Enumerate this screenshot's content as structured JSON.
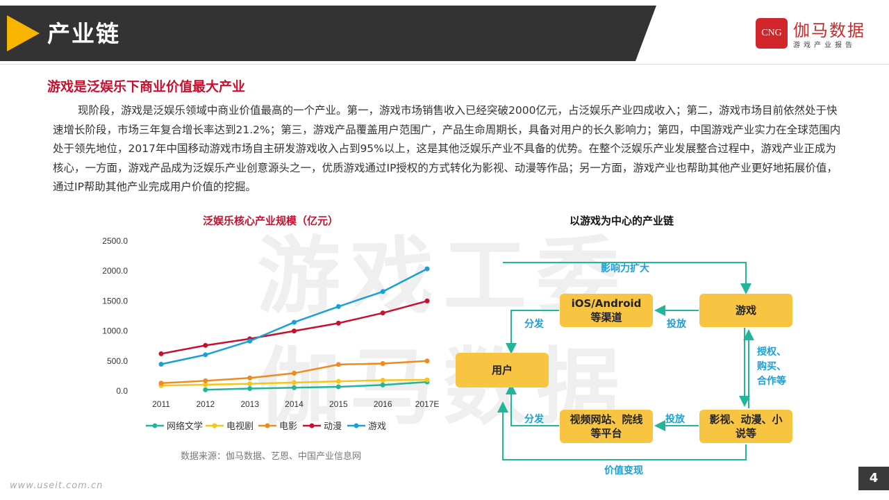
{
  "header": {
    "title": "产业链"
  },
  "logo": {
    "box_text": "CNG",
    "name": "伽马数据",
    "sub": "游戏产业报告"
  },
  "section": {
    "heading": "游戏是泛娱乐下商业价值最大产业"
  },
  "body": {
    "paragraph": "现阶段，游戏是泛娱乐领域中商业价值最高的一个产业。第一，游戏市场销售收入已经突破2000亿元，占泛娱乐产业四成收入；第二，游戏市场目前依然处于快速增长阶段，市场三年复合增长率达到21.2%；第三，游戏产品覆盖用户范围广，产品生命周期长，具备对用户的长久影响力；第四，中国游戏产业实力在全球范围内处于领先地位，2017年中国移动游戏市场自主研发游戏收入占到95%以上，这是其他泛娱乐产业不具备的优势。在整个泛娱乐产业发展整合过程中，游戏产业正成为核心，一方面，游戏产品成为泛娱乐产业创意源头之一，优质游戏通过IP授权的方式转化为影视、动漫等作品；另一方面，游戏产业也帮助其他产业更好地拓展价值，通过IP帮助其他产业完成用户价值的挖掘。"
  },
  "watermark": {
    "line1": "游戏工委",
    "line2": "伽马数据"
  },
  "chart_data": {
    "type": "line",
    "title": "泛娱乐核心产业规模（亿元）",
    "categories": [
      "2011",
      "2012",
      "2013",
      "2014",
      "2015",
      "2016",
      "2017E"
    ],
    "y_ticks": [
      "0.0",
      "500.0",
      "1000.0",
      "1500.0",
      "2000.0",
      "2500.0"
    ],
    "ylim": [
      0,
      2500
    ],
    "series": [
      {
        "name": "网络文学",
        "color": "#21b59a",
        "values": [
          null,
          20,
          40,
          55,
          70,
          100,
          150
        ]
      },
      {
        "name": "电视剧",
        "color": "#f5c518",
        "values": [
          90,
          105,
          120,
          140,
          160,
          180,
          185
        ]
      },
      {
        "name": "电影",
        "color": "#ee8a1e",
        "values": [
          130,
          170,
          217,
          296,
          441,
          457,
          500
        ]
      },
      {
        "name": "动漫",
        "color": "#c8102e",
        "values": [
          620,
          760,
          870,
          1000,
          1130,
          1300,
          1500
        ]
      },
      {
        "name": "游戏",
        "color": "#1aa0d8",
        "values": [
          446,
          603,
          832,
          1145,
          1407,
          1656,
          2036
        ]
      }
    ],
    "legend_position": "bottom"
  },
  "source": "数据来源：伽马数据、艺恩、中国产业信息网",
  "diagram": {
    "title": "以游戏为中心的产业链",
    "nodes": {
      "channels": "iOS/Android\n等渠道",
      "game": "游戏",
      "user": "用户",
      "video": "视频网站、院线\n等平台",
      "media": "影视、动漫、小\n说等"
    },
    "labels": {
      "top": "影响力扩大",
      "bottom": "价值变现",
      "distribute_top": "分发",
      "release_top": "投放",
      "distribute_bottom": "分发",
      "release_bottom": "投放",
      "license": "授权、\n购买、\n合作等"
    }
  },
  "footer": {
    "url": "www.useit.com.cn",
    "page": "4"
  }
}
